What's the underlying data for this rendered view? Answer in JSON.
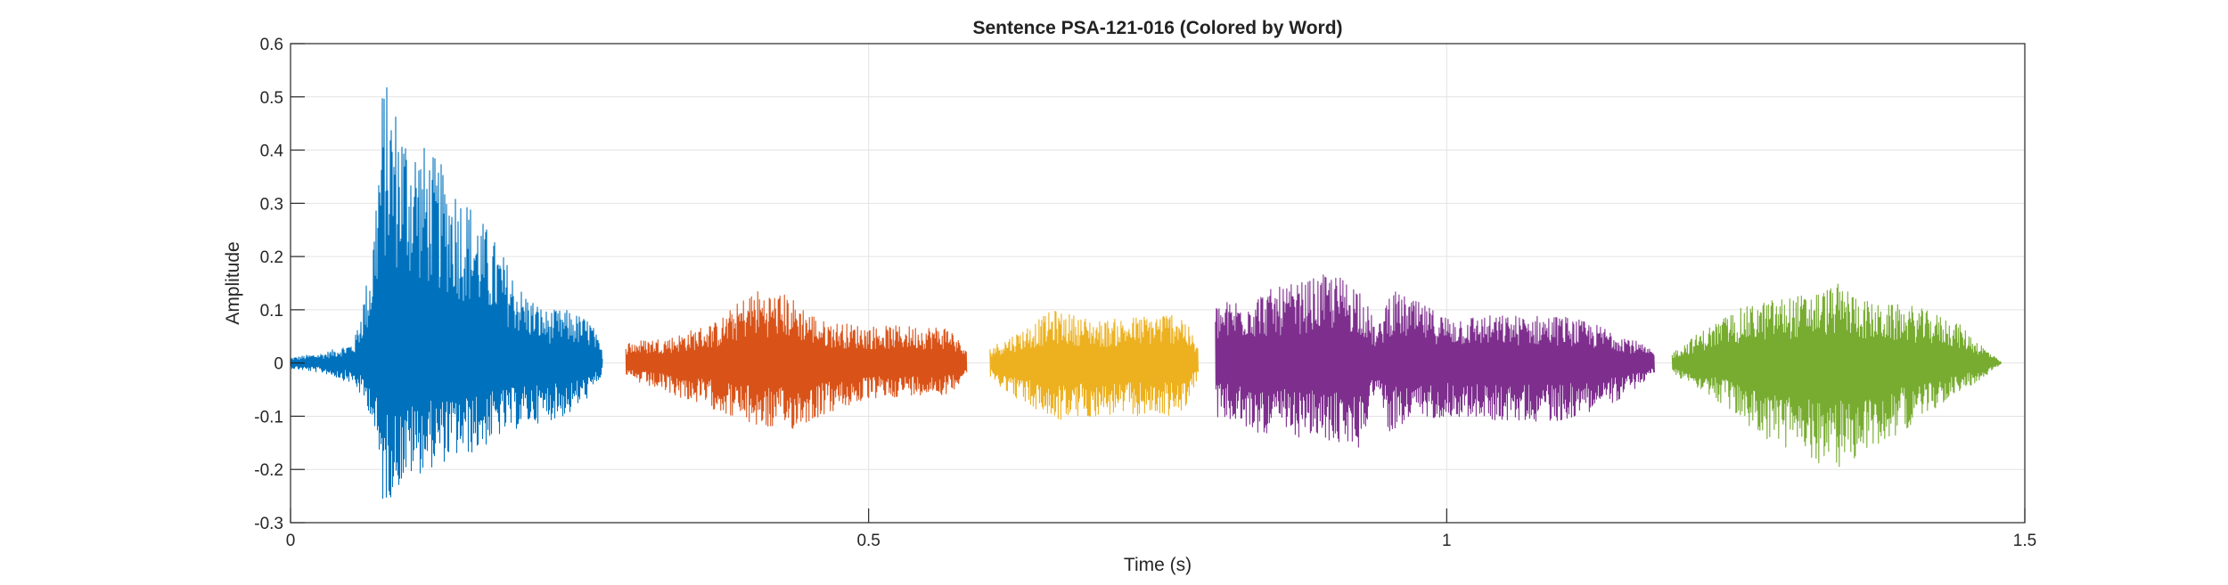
{
  "chart_data": {
    "type": "line",
    "title": "Sentence PSA-121-016 (Colored by Word)",
    "xlabel": "Time (s)",
    "ylabel": "Amplitude",
    "xlim": [
      0,
      1.5
    ],
    "ylim": [
      -0.3,
      0.6
    ],
    "xticks": [
      0,
      0.5,
      1,
      1.5
    ],
    "xtick_labels": [
      "0",
      "0.5",
      "1",
      "1.5"
    ],
    "yticks": [
      -0.3,
      -0.2,
      -0.1,
      0,
      0.1,
      0.2,
      0.3,
      0.4,
      0.5,
      0.6
    ],
    "ytick_labels": [
      "-0.3",
      "-0.2",
      "-0.1",
      "0",
      "0.1",
      "0.2",
      "0.3",
      "0.4",
      "0.5",
      "0.6"
    ],
    "grid": true,
    "legend": false,
    "series": [
      {
        "color": "#0072BD",
        "t_start": 0.0,
        "t_end": 0.27,
        "envelope_t": [
          0.0,
          0.03,
          0.055,
          0.07,
          0.08,
          0.1,
          0.12,
          0.14,
          0.16,
          0.18,
          0.2,
          0.22,
          0.24,
          0.26,
          0.27
        ],
        "envelope_max": [
          0.01,
          0.02,
          0.04,
          0.2,
          0.54,
          0.45,
          0.4,
          0.35,
          0.29,
          0.22,
          0.14,
          0.1,
          0.1,
          0.08,
          0.02
        ],
        "envelope_min": [
          -0.01,
          -0.02,
          -0.04,
          -0.1,
          -0.27,
          -0.22,
          -0.2,
          -0.18,
          -0.17,
          -0.14,
          -0.12,
          -0.11,
          -0.1,
          -0.06,
          -0.02
        ]
      },
      {
        "color": "#D95319",
        "t_start": 0.29,
        "t_end": 0.585,
        "envelope_t": [
          0.29,
          0.33,
          0.37,
          0.4,
          0.43,
          0.46,
          0.5,
          0.54,
          0.57,
          0.585
        ],
        "envelope_max": [
          0.04,
          0.05,
          0.08,
          0.14,
          0.13,
          0.08,
          0.07,
          0.07,
          0.07,
          0.02
        ],
        "envelope_min": [
          -0.03,
          -0.06,
          -0.09,
          -0.12,
          -0.13,
          -0.1,
          -0.07,
          -0.06,
          -0.06,
          -0.02
        ]
      },
      {
        "color": "#EDB120",
        "t_start": 0.605,
        "t_end": 0.785,
        "envelope_t": [
          0.605,
          0.63,
          0.66,
          0.7,
          0.74,
          0.77,
          0.785
        ],
        "envelope_max": [
          0.03,
          0.06,
          0.1,
          0.08,
          0.09,
          0.1,
          0.03
        ],
        "envelope_min": [
          -0.03,
          -0.07,
          -0.11,
          -0.1,
          -0.1,
          -0.1,
          -0.03
        ]
      },
      {
        "color": "#7E2F8E",
        "t_start": 0.8,
        "t_end": 1.18,
        "envelope_t": [
          0.8,
          0.83,
          0.87,
          0.9,
          0.925,
          0.94,
          0.95,
          0.97,
          1.0,
          1.05,
          1.1,
          1.15,
          1.18
        ],
        "envelope_max": [
          0.11,
          0.13,
          0.15,
          0.17,
          0.15,
          0.06,
          0.14,
          0.12,
          0.09,
          0.09,
          0.09,
          0.06,
          0.02
        ],
        "envelope_min": [
          -0.1,
          -0.13,
          -0.14,
          -0.15,
          -0.16,
          -0.04,
          -0.13,
          -0.11,
          -0.1,
          -0.11,
          -0.11,
          -0.07,
          -0.02
        ]
      },
      {
        "color": "#77AC30",
        "t_start": 1.195,
        "t_end": 1.48,
        "envelope_t": [
          1.195,
          1.22,
          1.25,
          1.28,
          1.31,
          1.34,
          1.37,
          1.4,
          1.44,
          1.47,
          1.48
        ],
        "envelope_max": [
          0.02,
          0.06,
          0.1,
          0.12,
          0.13,
          0.15,
          0.11,
          0.11,
          0.08,
          0.02,
          0.0
        ],
        "envelope_min": [
          -0.02,
          -0.05,
          -0.1,
          -0.15,
          -0.18,
          -0.2,
          -0.16,
          -0.12,
          -0.06,
          -0.02,
          0.0
        ]
      }
    ]
  }
}
